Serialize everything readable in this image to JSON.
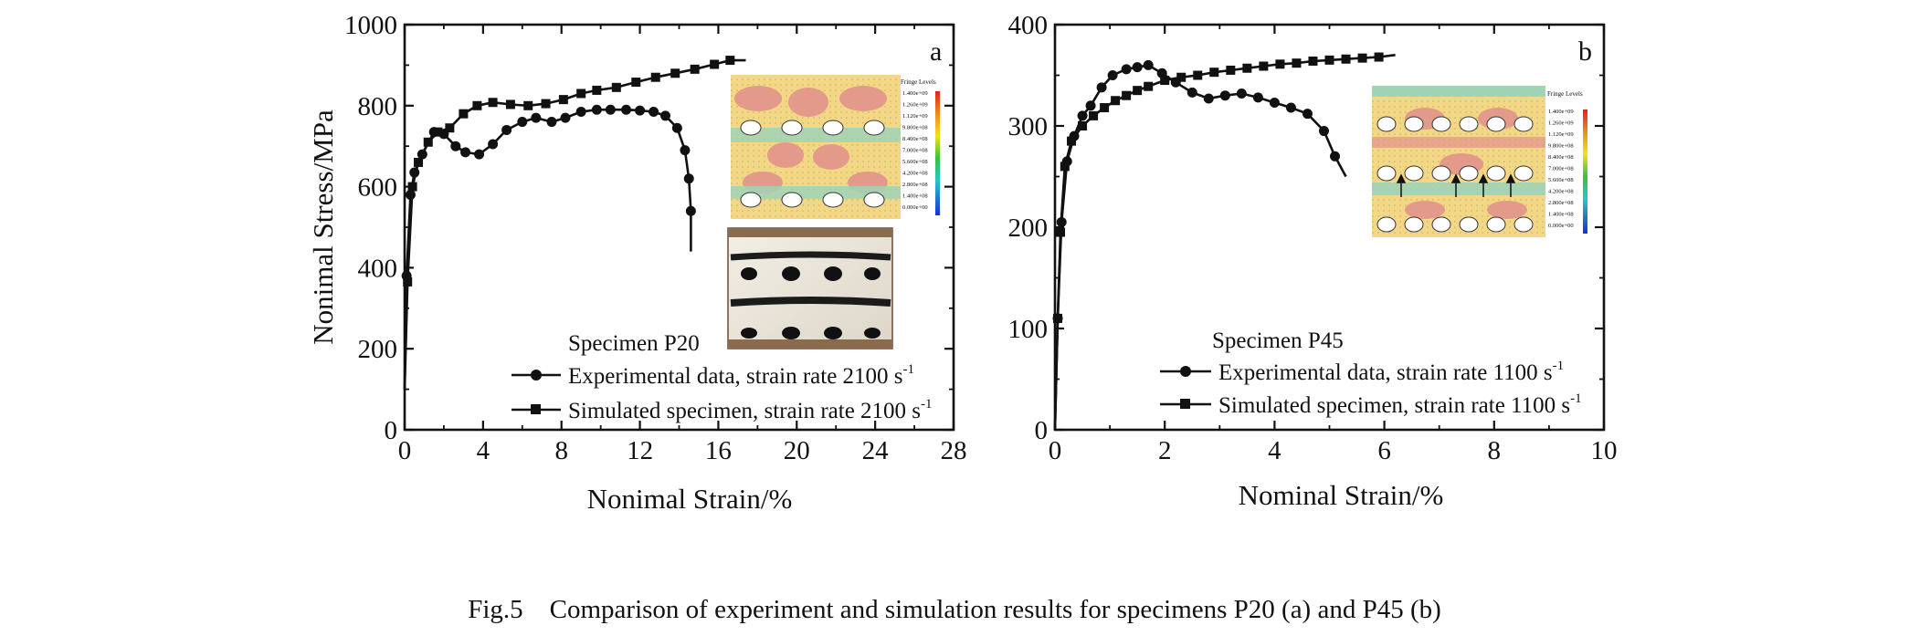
{
  "caption": "Fig.5    Comparison of experiment and simulation results for specimens P20 (a) and P45 (b)",
  "chart_data": [
    {
      "panel": "a",
      "type": "line",
      "xlabel": "Nonimal Strain/%",
      "ylabel": "Nonimal Stress/MPa",
      "xlim": [
        0,
        28
      ],
      "ylim": [
        0,
        1000
      ],
      "xticks": [
        0,
        4,
        8,
        12,
        16,
        20,
        24,
        28
      ],
      "yticks": [
        0,
        200,
        400,
        600,
        800,
        1000
      ],
      "grid": false,
      "legend": {
        "title": "Specimen P20",
        "placement": "bottom-right",
        "entries": [
          {
            "label": "Experimental data, strain rate 2100 s",
            "sup": "-1",
            "marker": "circle"
          },
          {
            "label": "Simulated specimen, strain rate 2100 s",
            "sup": "-1",
            "marker": "square"
          }
        ]
      },
      "insets": [
        {
          "kind": "fringe-plot",
          "title": "Fringe Levels",
          "levels": [
            "1.400e+09",
            "1.260e+09",
            "1.120e+09",
            "9.800e+08",
            "8.400e+08",
            "7.000e+08",
            "5.600e+08",
            "4.200e+08",
            "2.800e+08",
            "1.400e+08",
            "0.000e+00"
          ]
        },
        {
          "kind": "photo",
          "description": "deformed specimen"
        }
      ],
      "series": [
        {
          "marker": "circle",
          "x": [
            0,
            0.1,
            0.3,
            0.5,
            0.9,
            1.5,
            2.0,
            2.6,
            3.1,
            3.8,
            4.5,
            5.2,
            6.0,
            6.7,
            7.5,
            8.2,
            9.0,
            9.8,
            10.5,
            11.3,
            12.0,
            12.7,
            13.3,
            13.9,
            14.3,
            14.5,
            14.6,
            14.6
          ],
          "y": [
            100,
            380,
            580,
            635,
            680,
            735,
            730,
            700,
            685,
            680,
            705,
            740,
            760,
            770,
            760,
            770,
            785,
            790,
            790,
            790,
            788,
            785,
            775,
            745,
            690,
            620,
            540,
            440
          ]
        },
        {
          "marker": "square",
          "x": [
            0,
            0.15,
            0.4,
            0.7,
            1.2,
            1.7,
            2.3,
            3.0,
            3.7,
            4.5,
            5.4,
            6.3,
            7.2,
            8.1,
            9.0,
            9.8,
            10.8,
            11.8,
            12.8,
            13.8,
            14.8,
            15.8,
            16.6,
            17.4
          ],
          "y": [
            100,
            365,
            600,
            660,
            710,
            735,
            745,
            780,
            800,
            808,
            803,
            800,
            805,
            815,
            830,
            838,
            845,
            858,
            870,
            880,
            890,
            902,
            912,
            912
          ]
        }
      ]
    },
    {
      "panel": "b",
      "type": "line",
      "xlabel": "Nominal Strain/%",
      "ylabel": "",
      "xlim": [
        0,
        10
      ],
      "ylim": [
        0,
        400
      ],
      "xticks": [
        0,
        2,
        4,
        6,
        8,
        10
      ],
      "yticks": [
        0,
        100,
        200,
        300,
        400
      ],
      "grid": false,
      "legend": {
        "title": "Specimen P45",
        "placement": "bottom-right",
        "entries": [
          {
            "label": "Experimental data, strain rate 1100 s",
            "sup": "-1",
            "marker": "circle"
          },
          {
            "label": "Simulated specimen, strain rate 1100 s",
            "sup": "-1",
            "marker": "square"
          }
        ]
      },
      "insets": [
        {
          "kind": "fringe-plot",
          "title": "Fringe Levels",
          "levels": [
            "1.400e+09",
            "1.260e+09",
            "1.120e+09",
            "9.800e+08",
            "8.400e+08",
            "7.000e+08",
            "5.600e+08",
            "4.200e+08",
            "2.800e+08",
            "1.400e+08",
            "0.000e+00"
          ]
        }
      ],
      "series": [
        {
          "marker": "circle",
          "x": [
            0,
            0.05,
            0.12,
            0.22,
            0.35,
            0.5,
            0.65,
            0.85,
            1.05,
            1.3,
            1.5,
            1.7,
            1.95,
            2.2,
            2.5,
            2.8,
            3.1,
            3.4,
            3.7,
            4.0,
            4.3,
            4.6,
            4.9,
            5.1,
            5.3
          ],
          "y": [
            0,
            110,
            205,
            265,
            290,
            310,
            320,
            338,
            350,
            356,
            358,
            360,
            352,
            343,
            333,
            327,
            330,
            332,
            328,
            323,
            318,
            312,
            295,
            270,
            250
          ]
        },
        {
          "marker": "square",
          "x": [
            0,
            0.05,
            0.1,
            0.18,
            0.3,
            0.5,
            0.7,
            0.9,
            1.1,
            1.3,
            1.5,
            1.7,
            2.0,
            2.3,
            2.6,
            2.9,
            3.2,
            3.5,
            3.8,
            4.1,
            4.4,
            4.7,
            5.0,
            5.3,
            5.6,
            5.9,
            6.2
          ],
          "y": [
            0,
            110,
            195,
            260,
            285,
            300,
            310,
            318,
            325,
            330,
            335,
            339,
            345,
            348,
            350,
            353,
            355,
            357,
            359,
            361,
            362,
            364,
            365,
            366,
            367,
            368,
            370
          ]
        }
      ]
    }
  ]
}
